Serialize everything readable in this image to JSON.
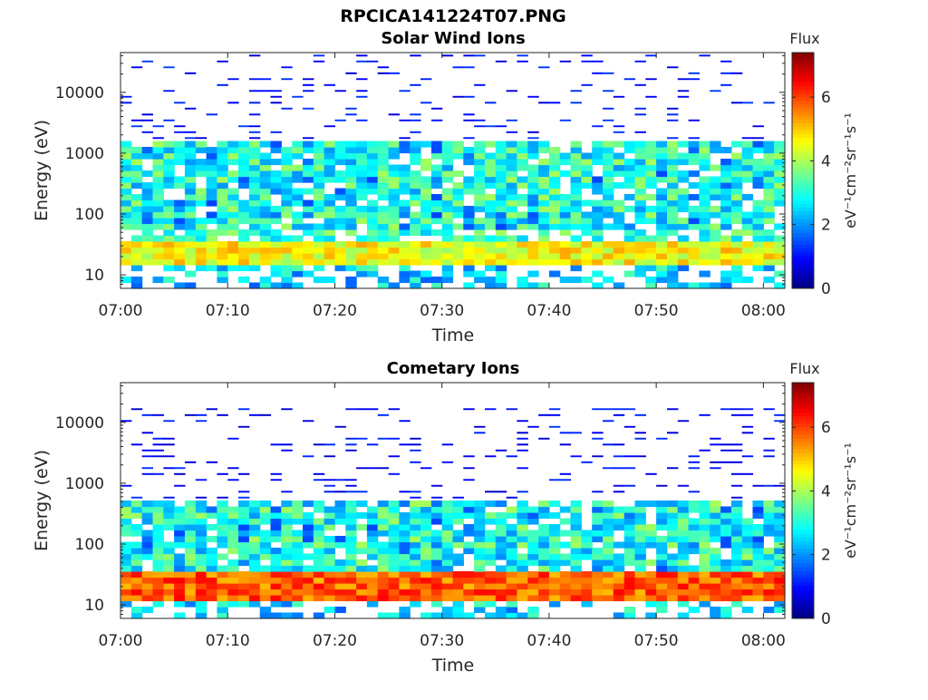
{
  "figure_title": "RPCICA141224T07.PNG",
  "chart_data": [
    {
      "type": "heatmap",
      "title": "Solar Wind Ions",
      "xlabel": "Time",
      "ylabel": "Energy (eV)",
      "x_ticks": [
        "07:00",
        "07:10",
        "07:20",
        "07:30",
        "07:40",
        "07:50",
        "08:00"
      ],
      "x_range_minutes": [
        0,
        62
      ],
      "y_scale": "log",
      "y_ticks": [
        10,
        100,
        1000,
        10000
      ],
      "y_ticks_labels": [
        "10",
        "100",
        "1000",
        "10000"
      ],
      "y_range": [
        6,
        45000
      ],
      "colorbar": {
        "title": "Flux",
        "label": "eV⁻¹cm⁻²sr⁻¹s⁻¹",
        "range": [
          0,
          7.4
        ],
        "ticks": [
          0,
          2,
          4,
          6
        ],
        "tick_labels": [
          "0",
          "2",
          "4",
          "6"
        ],
        "colormap": "jet"
      },
      "profile": {
        "low_band_energy": [
          16,
          32
        ],
        "low_band_level": 4.6,
        "peak_energy": [
          60,
          1600
        ],
        "peak_level": 3.0,
        "sparse_high_energy": [
          1600,
          45000
        ],
        "sparse_level": 1.0
      }
    },
    {
      "type": "heatmap",
      "title": "Cometary Ions",
      "xlabel": "Time",
      "ylabel": "Energy (eV)",
      "x_ticks": [
        "07:00",
        "07:10",
        "07:20",
        "07:30",
        "07:40",
        "07:50",
        "08:00"
      ],
      "x_range_minutes": [
        0,
        62
      ],
      "y_scale": "log",
      "y_ticks": [
        10,
        100,
        1000,
        10000
      ],
      "y_ticks_labels": [
        "10",
        "100",
        "1000",
        "10000"
      ],
      "y_range": [
        6,
        45000
      ],
      "colorbar": {
        "title": "Flux",
        "label": "eV⁻¹cm⁻²sr⁻¹s⁻¹",
        "range": [
          0,
          7.4
        ],
        "ticks": [
          0,
          2,
          4,
          6
        ],
        "tick_labels": [
          "0",
          "2",
          "4",
          "6"
        ],
        "colormap": "jet"
      },
      "profile": {
        "low_band_energy": [
          12,
          35
        ],
        "low_band_level": 5.8,
        "peak_energy": [
          35,
          500
        ],
        "peak_level": 3.0,
        "sparse_high_energy": [
          500,
          18000
        ],
        "sparse_level": 0.9
      }
    }
  ]
}
